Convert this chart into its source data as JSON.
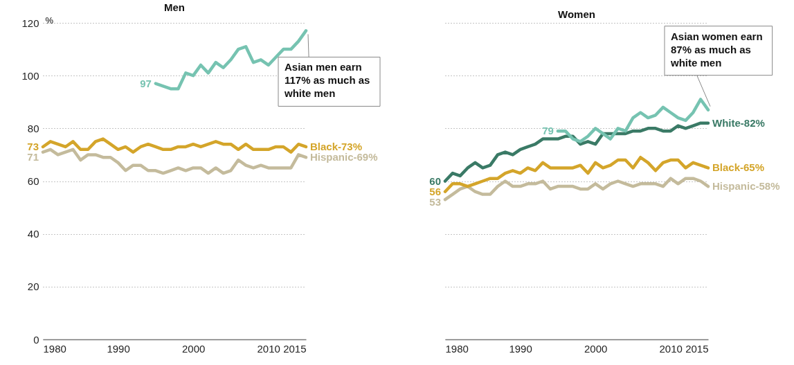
{
  "chart_data": [
    {
      "type": "line",
      "title": "Men",
      "ylabel": "%",
      "x": [
        1980,
        1981,
        1982,
        1983,
        1984,
        1985,
        1986,
        1987,
        1988,
        1989,
        1990,
        1991,
        1992,
        1993,
        1994,
        1995,
        1996,
        1997,
        1998,
        1999,
        2000,
        2001,
        2002,
        2003,
        2004,
        2005,
        2006,
        2007,
        2008,
        2009,
        2010,
        2011,
        2012,
        2013,
        2014,
        2015
      ],
      "xlim": [
        1980,
        2015
      ],
      "xticks": [
        1980,
        1990,
        2000,
        2010,
        2015
      ],
      "ylim": [
        0,
        120
      ],
      "yticks": [
        0,
        20,
        40,
        60,
        80,
        100,
        120
      ],
      "grid": "y",
      "series": [
        {
          "color": "#76c3b1",
          "x": [
            1995,
            1996,
            1997,
            1998,
            1999,
            2000,
            2001,
            2002,
            2003,
            2004,
            2005,
            2006,
            2007,
            2008,
            2009,
            2010,
            2011,
            2012,
            2013,
            2014,
            2015
          ],
          "values": [
            97,
            96,
            95,
            95,
            101,
            100,
            104,
            101,
            105,
            103,
            106,
            110,
            111,
            105,
            106,
            104,
            107,
            110,
            110,
            113,
            117
          ],
          "value_labels": [
            "97",
            null,
            null,
            null,
            null,
            null,
            null,
            null,
            null,
            null,
            null,
            null,
            null,
            null,
            null,
            null,
            null,
            null,
            null,
            null,
            null
          ]
        },
        {
          "name": "Black-73%",
          "color": "#d4a52a",
          "values": [
            73,
            75,
            74,
            73,
            75,
            72,
            72,
            75,
            76,
            74,
            72,
            73,
            71,
            73,
            74,
            73,
            72,
            72,
            73,
            73,
            74,
            73,
            74,
            75,
            74,
            74,
            72,
            74,
            72,
            72,
            72,
            73,
            73,
            71,
            74,
            73
          ],
          "value_labels": [
            "73",
            null,
            null,
            null,
            null,
            null,
            null,
            null,
            null,
            null,
            null,
            null,
            null,
            null,
            null,
            null,
            null,
            null,
            null,
            null,
            null,
            null,
            null,
            null,
            null,
            null,
            null,
            null,
            null,
            null,
            null,
            null,
            null,
            null,
            null,
            null
          ]
        },
        {
          "name": "Hispanic-69%",
          "color": "#c4bb9c",
          "values": [
            71,
            72,
            70,
            71,
            72,
            68,
            70,
            70,
            69,
            69,
            67,
            64,
            66,
            66,
            64,
            64,
            63,
            64,
            65,
            64,
            65,
            65,
            63,
            65,
            63,
            64,
            68,
            66,
            65,
            66,
            65,
            65,
            65,
            65,
            70,
            69
          ],
          "value_labels": [
            "71",
            null,
            null,
            null,
            null,
            null,
            null,
            null,
            null,
            null,
            null,
            null,
            null,
            null,
            null,
            null,
            null,
            null,
            null,
            null,
            null,
            null,
            null,
            null,
            null,
            null,
            null,
            null,
            null,
            null,
            null,
            null,
            null,
            null,
            null,
            null
          ]
        }
      ],
      "annotations": [
        {
          "text": "Asian men earn 117% as much as white men",
          "x": 2015,
          "y": 117
        }
      ]
    },
    {
      "type": "line",
      "title": "Women",
      "x": [
        1980,
        1981,
        1982,
        1983,
        1984,
        1985,
        1986,
        1987,
        1988,
        1989,
        1990,
        1991,
        1992,
        1993,
        1994,
        1995,
        1996,
        1997,
        1998,
        1999,
        2000,
        2001,
        2002,
        2003,
        2004,
        2005,
        2006,
        2007,
        2008,
        2009,
        2010,
        2011,
        2012,
        2013,
        2014,
        2015
      ],
      "xlim": [
        1980,
        2015
      ],
      "xticks": [
        1980,
        1990,
        2000,
        2010,
        2015
      ],
      "ylim": [
        0,
        120
      ],
      "yticks": [
        0,
        20,
        40,
        60,
        80,
        100,
        120
      ],
      "grid": "y",
      "tick_labels": "x",
      "series": [
        {
          "name": "Hispanic-58%",
          "color": "#c4bb9c",
          "values": [
            53,
            55,
            57,
            58,
            56,
            55,
            55,
            58,
            60,
            58,
            58,
            59,
            59,
            60,
            57,
            58,
            58,
            58,
            57,
            57,
            59,
            57,
            59,
            60,
            59,
            58,
            59,
            59,
            59,
            58,
            61,
            59,
            61,
            61,
            60,
            58
          ],
          "value_labels": [
            "53",
            null,
            null,
            null,
            null,
            null,
            null,
            null,
            null,
            null,
            null,
            null,
            null,
            null,
            null,
            null,
            null,
            null,
            null,
            null,
            null,
            null,
            null,
            null,
            null,
            null,
            null,
            null,
            null,
            null,
            null,
            null,
            null,
            null,
            null,
            null
          ]
        },
        {
          "name": "Black-65%",
          "color": "#d4a52a",
          "values": [
            56,
            59,
            59,
            58,
            59,
            60,
            61,
            61,
            63,
            64,
            63,
            65,
            64,
            67,
            65,
            65,
            65,
            65,
            66,
            63,
            67,
            65,
            66,
            68,
            68,
            65,
            69,
            67,
            64,
            67,
            68,
            68,
            65,
            67,
            66,
            65
          ],
          "value_labels": [
            "56",
            null,
            null,
            null,
            null,
            null,
            null,
            null,
            null,
            null,
            null,
            null,
            null,
            null,
            null,
            null,
            null,
            null,
            null,
            null,
            null,
            null,
            null,
            null,
            null,
            null,
            null,
            null,
            null,
            null,
            null,
            null,
            null,
            null,
            null,
            null
          ]
        },
        {
          "name": "White-82%",
          "color": "#3a7a66",
          "values": [
            60,
            63,
            62,
            65,
            67,
            65,
            66,
            70,
            71,
            70,
            72,
            73,
            74,
            76,
            76,
            76,
            77,
            77,
            74,
            75,
            74,
            78,
            78,
            78,
            78,
            79,
            79,
            80,
            80,
            79,
            79,
            81,
            80,
            81,
            82,
            82
          ],
          "value_labels": [
            "60",
            null,
            null,
            null,
            null,
            null,
            null,
            null,
            null,
            null,
            null,
            null,
            null,
            null,
            null,
            null,
            null,
            null,
            null,
            null,
            null,
            null,
            null,
            null,
            null,
            null,
            null,
            null,
            null,
            null,
            null,
            null,
            null,
            null,
            null,
            null
          ]
        },
        {
          "color": "#76c3b1",
          "x": [
            1995,
            1996,
            1997,
            1998,
            1999,
            2000,
            2001,
            2002,
            2003,
            2004,
            2005,
            2006,
            2007,
            2008,
            2009,
            2010,
            2011,
            2012,
            2013,
            2014,
            2015
          ],
          "values": [
            79,
            79,
            76,
            75,
            77,
            80,
            78,
            76,
            80,
            79,
            84,
            86,
            84,
            85,
            88,
            86,
            84,
            83,
            86,
            91,
            87
          ],
          "value_labels": [
            "79",
            null,
            null,
            null,
            null,
            null,
            null,
            null,
            null,
            null,
            null,
            null,
            null,
            null,
            null,
            null,
            null,
            null,
            null,
            null,
            null
          ]
        }
      ],
      "annotations": [
        {
          "text": "Asian women earn 87% as much as white men",
          "x": 2015,
          "y": 87
        }
      ]
    }
  ]
}
